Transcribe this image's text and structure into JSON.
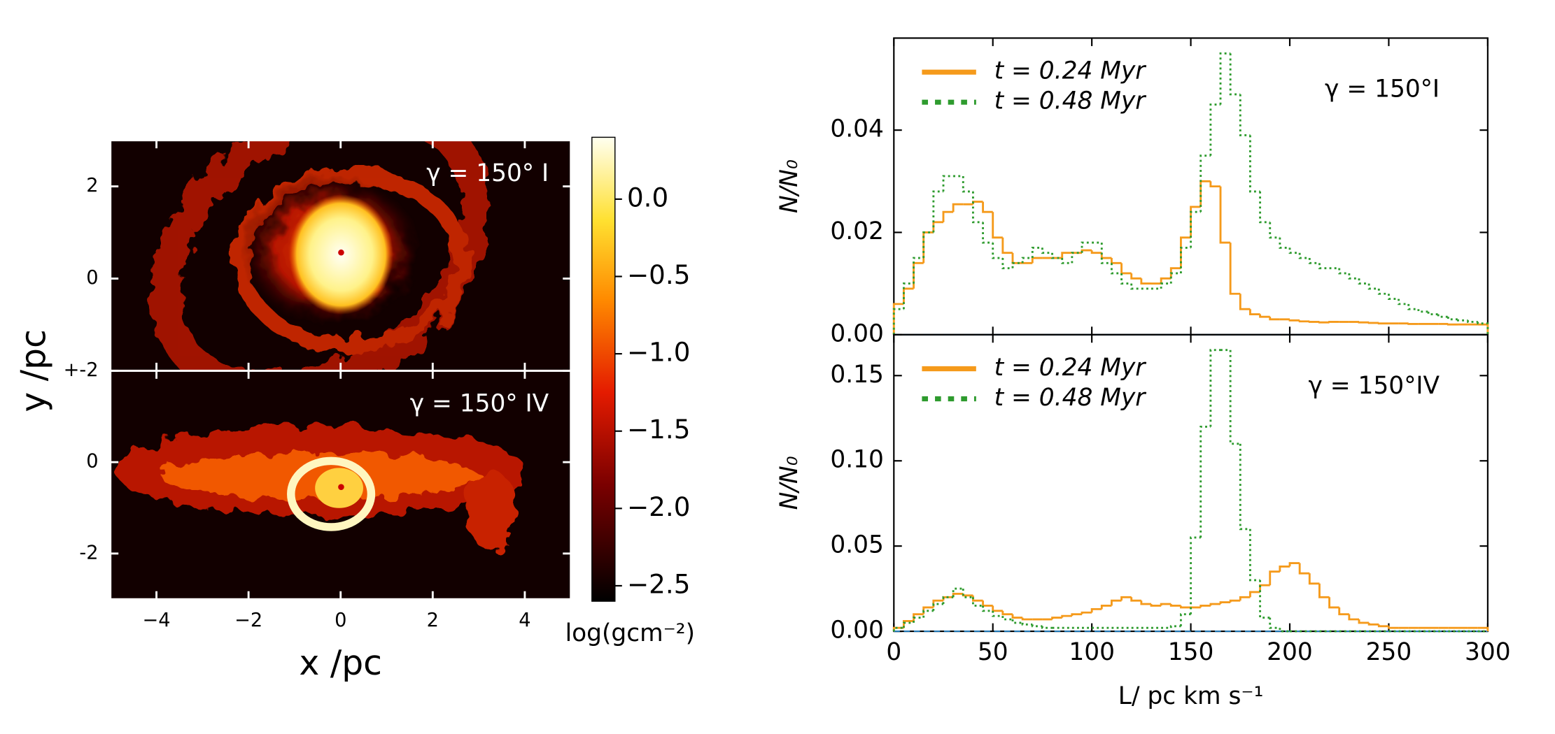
{
  "chart_data": [
    {
      "type": "image",
      "title": "γ = 150° I",
      "xlim": [
        -5,
        5
      ],
      "ylim": [
        -2,
        3
      ],
      "yticks": [
        {
          "value": -2,
          "label": "+-2"
        },
        0,
        2
      ],
      "colorbar": {
        "label": "log(gcm⁻²)",
        "lim": [
          -2.6,
          0.4
        ],
        "ticks": [
          {
            "value": 0,
            "label": "0.0"
          },
          {
            "value": -0.5,
            "label": "−0.5"
          },
          {
            "value": -1,
            "label": "−1.0"
          },
          {
            "value": -1.5,
            "label": "−1.5"
          },
          {
            "value": -2,
            "label": "−2.0"
          },
          {
            "value": -2.5,
            "label": "−2.5"
          }
        ]
      }
    },
    {
      "type": "image",
      "title": "γ = 150° IV",
      "xlim": [
        -5,
        5
      ],
      "ylim": [
        -3,
        2
      ],
      "xticks": [
        {
          "value": -4,
          "label": "−4"
        },
        {
          "value": -2,
          "label": "−2"
        },
        0,
        2,
        4
      ],
      "yticks": [
        {
          "value": -2,
          "label": "-2"
        },
        0
      ],
      "xlabel": "x /pc",
      "ylabel": "y /pc"
    },
    {
      "type": "histogram",
      "title": "γ = 150°I",
      "ylabel": "N/N₀",
      "legend": "upper left",
      "xlim": [
        0,
        300
      ],
      "ylim": [
        0,
        0.058
      ],
      "yticks": [
        {
          "value": 0,
          "label": "0.00"
        },
        {
          "value": 0.02,
          "label": "0.02"
        },
        {
          "value": 0.04,
          "label": "0.04"
        }
      ],
      "bins": [
        0,
        5,
        10,
        15,
        20,
        25,
        30,
        35,
        40,
        45,
        50,
        55,
        60,
        65,
        70,
        75,
        80,
        85,
        90,
        95,
        100,
        105,
        110,
        115,
        120,
        125,
        130,
        135,
        140,
        145,
        150,
        155,
        160,
        165,
        170,
        175,
        180,
        185,
        190,
        195,
        200,
        205,
        210,
        215,
        220,
        225,
        230,
        235,
        240,
        245,
        250,
        255,
        260,
        265,
        270,
        275,
        280,
        285,
        290,
        295,
        300
      ],
      "series": [
        {
          "name": "t = 0.24 Myr",
          "color": "#f59a1b",
          "style": "solid",
          "values": [
            0.006,
            0.009,
            0.014,
            0.02,
            0.022,
            0.024,
            0.0255,
            0.0255,
            0.026,
            0.024,
            0.019,
            0.016,
            0.014,
            0.014,
            0.015,
            0.015,
            0.015,
            0.016,
            0.016,
            0.0165,
            0.016,
            0.015,
            0.014,
            0.012,
            0.011,
            0.01,
            0.01,
            0.011,
            0.013,
            0.019,
            0.025,
            0.03,
            0.029,
            0.018,
            0.008,
            0.005,
            0.004,
            0.0035,
            0.003,
            0.003,
            0.0028,
            0.0026,
            0.0025,
            0.0024,
            0.0025,
            0.0025,
            0.0025,
            0.0024,
            0.0023,
            0.0022,
            0.0022,
            0.0022,
            0.0021,
            0.0021,
            0.0021,
            0.0021,
            0.002,
            0.002,
            0.002,
            0.002
          ]
        },
        {
          "name": "t = 0.48 Myr",
          "color": "#2e9b2e",
          "style": "dotted",
          "values": [
            0.005,
            0.01,
            0.015,
            0.02,
            0.028,
            0.031,
            0.031,
            0.028,
            0.022,
            0.018,
            0.015,
            0.013,
            0.014,
            0.015,
            0.017,
            0.016,
            0.015,
            0.014,
            0.016,
            0.018,
            0.018,
            0.014,
            0.012,
            0.01,
            0.009,
            0.009,
            0.009,
            0.01,
            0.012,
            0.017,
            0.024,
            0.035,
            0.045,
            0.055,
            0.047,
            0.039,
            0.028,
            0.022,
            0.019,
            0.017,
            0.016,
            0.015,
            0.014,
            0.013,
            0.013,
            0.012,
            0.011,
            0.01,
            0.009,
            0.008,
            0.007,
            0.006,
            0.005,
            0.0045,
            0.004,
            0.0035,
            0.003,
            0.0028,
            0.0025,
            0.0022
          ]
        }
      ]
    },
    {
      "type": "histogram",
      "title": "γ = 150°IV",
      "ylabel": "N/N₀",
      "xlabel": "L/ pc km s⁻¹",
      "legend": "upper left",
      "xlim": [
        0,
        300
      ],
      "ylim": [
        0,
        0.174
      ],
      "xticks": [
        0,
        50,
        100,
        150,
        200,
        250,
        300
      ],
      "yticks": [
        {
          "value": 0,
          "label": "0.00"
        },
        {
          "value": 0.05,
          "label": "0.05"
        },
        {
          "value": 0.1,
          "label": "0.10"
        },
        {
          "value": 0.15,
          "label": "0.15"
        }
      ],
      "bins": [
        0,
        5,
        10,
        15,
        20,
        25,
        30,
        35,
        40,
        45,
        50,
        55,
        60,
        65,
        70,
        75,
        80,
        85,
        90,
        95,
        100,
        105,
        110,
        115,
        120,
        125,
        130,
        135,
        140,
        145,
        150,
        155,
        160,
        165,
        170,
        175,
        180,
        185,
        190,
        195,
        200,
        205,
        210,
        215,
        220,
        225,
        230,
        235,
        240,
        245,
        250,
        255,
        260,
        265,
        270,
        275,
        280,
        285,
        290,
        295,
        300
      ],
      "series": [
        {
          "name": "t = 0.24 Myr",
          "color": "#f59a1b",
          "style": "solid",
          "values": [
            0.002,
            0.006,
            0.01,
            0.014,
            0.018,
            0.02,
            0.022,
            0.021,
            0.018,
            0.015,
            0.012,
            0.01,
            0.008,
            0.007,
            0.007,
            0.007,
            0.008,
            0.009,
            0.01,
            0.011,
            0.013,
            0.015,
            0.018,
            0.02,
            0.018,
            0.016,
            0.015,
            0.016,
            0.015,
            0.014,
            0.014,
            0.015,
            0.016,
            0.017,
            0.018,
            0.02,
            0.023,
            0.027,
            0.035,
            0.038,
            0.04,
            0.034,
            0.028,
            0.02,
            0.014,
            0.01,
            0.007,
            0.005,
            0.004,
            0.003,
            0.002,
            0.002,
            0.002,
            0.002,
            0.002,
            0.002,
            0.002,
            0.002,
            0.002,
            0.002
          ]
        },
        {
          "name": "t = 0.48 Myr",
          "color": "#2e9b2e",
          "style": "dotted",
          "values": [
            0.002,
            0.005,
            0.008,
            0.012,
            0.016,
            0.02,
            0.025,
            0.02,
            0.015,
            0.012,
            0.009,
            0.007,
            0.005,
            0.004,
            0.003,
            0.002,
            0.002,
            0.002,
            0.002,
            0.002,
            0.002,
            0.002,
            0.002,
            0.002,
            0.002,
            0.002,
            0.002,
            0.002,
            0.003,
            0.01,
            0.055,
            0.12,
            0.165,
            0.165,
            0.11,
            0.06,
            0.03,
            0.008,
            0.002,
            0,
            0,
            0,
            0,
            0,
            0,
            0,
            0,
            0,
            0,
            0,
            0,
            0,
            0,
            0,
            0,
            0,
            0,
            0,
            0,
            0
          ]
        }
      ]
    }
  ]
}
